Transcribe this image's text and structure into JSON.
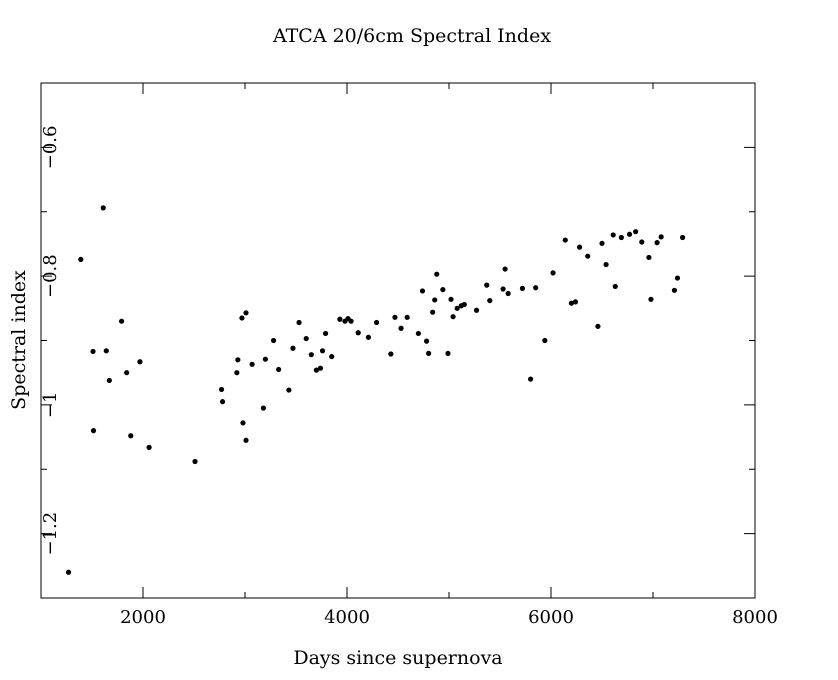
{
  "chart_data": {
    "type": "scatter",
    "title": "ATCA 20/6cm Spectral Index",
    "xlabel": "Days since supernova",
    "ylabel": "Spectral index",
    "xlim": [
      1000,
      8000
    ],
    "ylim": [
      -1.3,
      -0.5
    ],
    "x_major_ticks": [
      2000,
      4000,
      6000,
      8000
    ],
    "x_tick_labels": [
      "2000",
      "4000",
      "6000",
      "8000"
    ],
    "x_minor_ticks": [
      3000,
      5000,
      7000
    ],
    "y_major_ticks": [
      -1.2,
      -1.0,
      -0.8,
      -0.6
    ],
    "y_tick_labels": [
      "−1.2",
      "−1",
      "−0.8",
      "−0.6"
    ],
    "y_minor_ticks": [
      -1.1,
      -0.9,
      -0.7
    ],
    "grid": false,
    "legend": "none",
    "marker_color": "#000000",
    "points": [
      [
        1270,
        -1.26
      ],
      [
        1390,
        -0.774
      ],
      [
        1510,
        -0.917
      ],
      [
        1515,
        -1.04
      ],
      [
        1610,
        -0.694
      ],
      [
        1640,
        -0.916
      ],
      [
        1670,
        -0.962
      ],
      [
        1790,
        -0.87
      ],
      [
        1840,
        -0.95
      ],
      [
        1880,
        -1.048
      ],
      [
        1970,
        -0.933
      ],
      [
        2060,
        -1.066
      ],
      [
        2510,
        -1.088
      ],
      [
        2770,
        -0.976
      ],
      [
        2780,
        -0.995
      ],
      [
        2920,
        -0.95
      ],
      [
        2930,
        -0.93
      ],
      [
        2970,
        -0.865
      ],
      [
        2980,
        -1.028
      ],
      [
        3010,
        -1.055
      ],
      [
        3010,
        -0.857
      ],
      [
        3070,
        -0.937
      ],
      [
        3180,
        -1.005
      ],
      [
        3200,
        -0.929
      ],
      [
        3280,
        -0.9
      ],
      [
        3330,
        -0.945
      ],
      [
        3430,
        -0.977
      ],
      [
        3470,
        -0.912
      ],
      [
        3530,
        -0.872
      ],
      [
        3600,
        -0.897
      ],
      [
        3650,
        -0.922
      ],
      [
        3700,
        -0.946
      ],
      [
        3740,
        -0.943
      ],
      [
        3760,
        -0.916
      ],
      [
        3790,
        -0.889
      ],
      [
        3850,
        -0.925
      ],
      [
        3930,
        -0.867
      ],
      [
        3980,
        -0.87
      ],
      [
        4010,
        -0.866
      ],
      [
        4040,
        -0.87
      ],
      [
        4110,
        -0.888
      ],
      [
        4210,
        -0.895
      ],
      [
        4290,
        -0.872
      ],
      [
        4430,
        -0.921
      ],
      [
        4470,
        -0.864
      ],
      [
        4530,
        -0.881
      ],
      [
        4590,
        -0.864
      ],
      [
        4700,
        -0.889
      ],
      [
        4740,
        -0.823
      ],
      [
        4780,
        -0.901
      ],
      [
        4800,
        -0.92
      ],
      [
        4840,
        -0.856
      ],
      [
        4860,
        -0.837
      ],
      [
        4880,
        -0.797
      ],
      [
        4940,
        -0.821
      ],
      [
        4990,
        -0.92
      ],
      [
        5020,
        -0.836
      ],
      [
        5040,
        -0.863
      ],
      [
        5080,
        -0.85
      ],
      [
        5120,
        -0.846
      ],
      [
        5150,
        -0.844
      ],
      [
        5270,
        -0.853
      ],
      [
        5370,
        -0.814
      ],
      [
        5400,
        -0.838
      ],
      [
        5530,
        -0.82
      ],
      [
        5550,
        -0.789
      ],
      [
        5580,
        -0.827
      ],
      [
        5720,
        -0.819
      ],
      [
        5800,
        -0.96
      ],
      [
        5850,
        -0.818
      ],
      [
        5940,
        -0.9
      ],
      [
        6020,
        -0.795
      ],
      [
        6140,
        -0.744
      ],
      [
        6200,
        -0.842
      ],
      [
        6240,
        -0.84
      ],
      [
        6280,
        -0.755
      ],
      [
        6360,
        -0.769
      ],
      [
        6460,
        -0.878
      ],
      [
        6500,
        -0.749
      ],
      [
        6540,
        -0.782
      ],
      [
        6610,
        -0.736
      ],
      [
        6630,
        -0.816
      ],
      [
        6690,
        -0.74
      ],
      [
        6770,
        -0.735
      ],
      [
        6830,
        -0.731
      ],
      [
        6890,
        -0.747
      ],
      [
        6960,
        -0.771
      ],
      [
        6980,
        -0.836
      ],
      [
        7040,
        -0.748
      ],
      [
        7080,
        -0.739
      ],
      [
        7210,
        -0.822
      ],
      [
        7240,
        -0.803
      ],
      [
        7290,
        -0.74
      ]
    ]
  }
}
